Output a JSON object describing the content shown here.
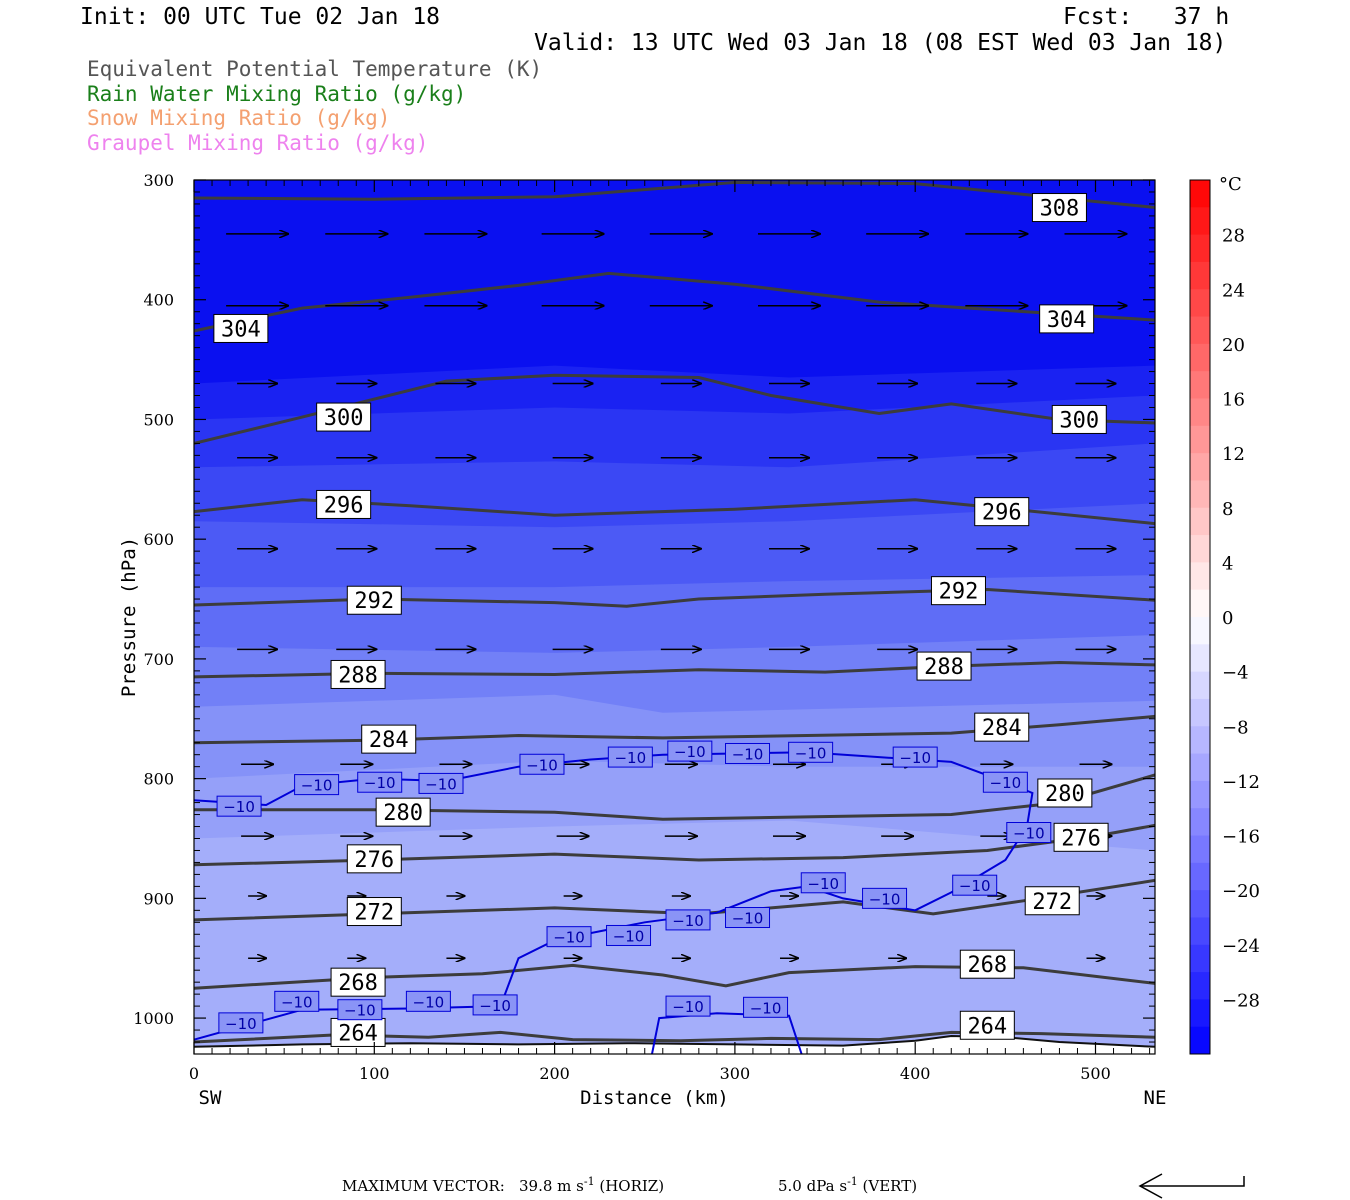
{
  "header": {
    "init": "Init: 00 UTC Tue 02 Jan 18",
    "fcst": "Fcst:   37 h",
    "valid": "Valid: 13 UTC Wed 03 Jan 18 (08 EST Wed 03 Jan 18)"
  },
  "legend": [
    {
      "label": "Equivalent Potential Temperature (K)",
      "color": "#555555"
    },
    {
      "label": "Rain Water Mixing Ratio (g/kg)",
      "color": "#1a7f1a"
    },
    {
      "label": "Snow Mixing Ratio (g/kg)",
      "color": "#f4a070"
    },
    {
      "label": "Graupel Mixing Ratio (g/kg)",
      "color": "#ee82ee"
    }
  ],
  "chart_data": {
    "type": "contour",
    "xlabel": "Distance (km)",
    "ylabel": "Pressure (hPa)",
    "x_ticks": [
      0,
      100,
      200,
      300,
      400,
      500
    ],
    "y_ticks": [
      300,
      400,
      500,
      600,
      700,
      800,
      900,
      1000
    ],
    "xlim": [
      0,
      533
    ],
    "ylim": [
      300,
      1030
    ],
    "x_end_labels": {
      "left": "SW",
      "right": "NE"
    },
    "colorbar": {
      "unit": "°C",
      "tick_labels": [
        "28",
        "24",
        "20",
        "16",
        "12",
        "8",
        "4",
        "0",
        "−4",
        "−8",
        "−12",
        "−16",
        "−20",
        "−24",
        "−28"
      ],
      "tick_values": [
        28,
        24,
        20,
        16,
        12,
        8,
        4,
        0,
        -4,
        -8,
        -12,
        -16,
        -20,
        -24,
        -28
      ],
      "range": [
        -32,
        32
      ]
    },
    "theta_e_contours": [
      {
        "label": "308",
        "points": [
          [
            0,
            315
          ],
          [
            100,
            316
          ],
          [
            200,
            314
          ],
          [
            300,
            302
          ],
          [
            400,
            303
          ],
          [
            533,
            323
          ]
        ],
        "labels": [
          [
            480,
            323
          ]
        ]
      },
      {
        "label": "304",
        "points": [
          [
            0,
            426
          ],
          [
            60,
            407
          ],
          [
            120,
            398
          ],
          [
            180,
            388
          ],
          [
            230,
            378
          ],
          [
            300,
            387
          ],
          [
            380,
            402
          ],
          [
            430,
            407
          ],
          [
            533,
            417
          ]
        ],
        "labels": [
          [
            26,
            424
          ],
          [
            484,
            416
          ]
        ]
      },
      {
        "label": "300",
        "points": [
          [
            0,
            520
          ],
          [
            60,
            498
          ],
          [
            100,
            483
          ],
          [
            140,
            468
          ],
          [
            200,
            463
          ],
          [
            280,
            465
          ],
          [
            320,
            480
          ],
          [
            380,
            495
          ],
          [
            420,
            487
          ],
          [
            480,
            500
          ],
          [
            533,
            503
          ]
        ],
        "labels": [
          [
            83,
            498
          ],
          [
            491,
            500
          ]
        ]
      },
      {
        "label": "296",
        "points": [
          [
            0,
            577
          ],
          [
            60,
            567
          ],
          [
            120,
            572
          ],
          [
            200,
            580
          ],
          [
            300,
            575
          ],
          [
            400,
            567
          ],
          [
            460,
            576
          ],
          [
            533,
            587
          ]
        ],
        "labels": [
          [
            83,
            571
          ],
          [
            448,
            577
          ]
        ]
      },
      {
        "label": "292",
        "points": [
          [
            0,
            655
          ],
          [
            100,
            650
          ],
          [
            200,
            653
          ],
          [
            240,
            656
          ],
          [
            280,
            650
          ],
          [
            350,
            646
          ],
          [
            440,
            642
          ],
          [
            533,
            651
          ]
        ],
        "labels": [
          [
            100,
            651
          ],
          [
            424,
            643
          ]
        ]
      },
      {
        "label": "288",
        "points": [
          [
            0,
            715
          ],
          [
            100,
            712
          ],
          [
            200,
            713
          ],
          [
            280,
            709
          ],
          [
            350,
            711
          ],
          [
            420,
            706
          ],
          [
            480,
            703
          ],
          [
            533,
            705
          ]
        ],
        "labels": [
          [
            91,
            713
          ],
          [
            416,
            706
          ]
        ]
      },
      {
        "label": "284",
        "points": [
          [
            0,
            770
          ],
          [
            100,
            768
          ],
          [
            180,
            764
          ],
          [
            260,
            766
          ],
          [
            340,
            764
          ],
          [
            420,
            762
          ],
          [
            480,
            755
          ],
          [
            533,
            748
          ]
        ],
        "labels": [
          [
            108,
            767
          ],
          [
            448,
            757
          ]
        ]
      },
      {
        "label": "280",
        "points": [
          [
            0,
            826
          ],
          [
            100,
            826
          ],
          [
            200,
            828
          ],
          [
            260,
            834
          ],
          [
            340,
            832
          ],
          [
            420,
            830
          ],
          [
            480,
            820
          ],
          [
            533,
            797
          ]
        ],
        "labels": [
          [
            116,
            828
          ],
          [
            483,
            812
          ]
        ]
      },
      {
        "label": "276",
        "points": [
          [
            0,
            872
          ],
          [
            100,
            868
          ],
          [
            200,
            863
          ],
          [
            280,
            868
          ],
          [
            360,
            866
          ],
          [
            440,
            860
          ],
          [
            500,
            848
          ],
          [
            533,
            839
          ]
        ],
        "labels": [
          [
            100,
            867
          ],
          [
            492,
            849
          ]
        ]
      },
      {
        "label": "272",
        "points": [
          [
            0,
            918
          ],
          [
            100,
            913
          ],
          [
            200,
            908
          ],
          [
            280,
            913
          ],
          [
            360,
            903
          ],
          [
            410,
            913
          ],
          [
            460,
            902
          ],
          [
            533,
            885
          ]
        ],
        "labels": [
          [
            100,
            911
          ],
          [
            476,
            902
          ]
        ]
      },
      {
        "label": "268",
        "points": [
          [
            0,
            975
          ],
          [
            100,
            966
          ],
          [
            160,
            963
          ],
          [
            210,
            956
          ],
          [
            260,
            964
          ],
          [
            295,
            973
          ],
          [
            330,
            962
          ],
          [
            400,
            957
          ],
          [
            460,
            958
          ],
          [
            533,
            971
          ]
        ],
        "labels": [
          [
            91,
            970
          ],
          [
            440,
            955
          ]
        ]
      },
      {
        "label": "264",
        "points": [
          [
            0,
            1020
          ],
          [
            80,
            1014
          ],
          [
            130,
            1016
          ],
          [
            170,
            1012
          ],
          [
            210,
            1018
          ],
          [
            270,
            1019
          ],
          [
            320,
            1017
          ],
          [
            380,
            1018
          ],
          [
            420,
            1012
          ],
          [
            470,
            1013
          ],
          [
            533,
            1016
          ]
        ],
        "labels": [
          [
            91,
            1012
          ],
          [
            440,
            1006
          ]
        ]
      }
    ],
    "temperature_contour": {
      "label": "−10",
      "labels": [
        [
          25,
          823
        ],
        [
          68,
          805
        ],
        [
          103,
          803
        ],
        [
          137,
          804
        ],
        [
          193,
          788
        ],
        [
          242,
          782
        ],
        [
          275,
          777
        ],
        [
          307,
          779
        ],
        [
          342,
          778
        ],
        [
          400,
          782
        ],
        [
          450,
          803
        ],
        [
          463,
          845
        ],
        [
          433,
          889
        ],
        [
          349,
          887
        ],
        [
          383,
          900
        ],
        [
          274,
          918
        ],
        [
          307,
          916
        ],
        [
          208,
          932
        ],
        [
          241,
          931
        ],
        [
          26,
          1004
        ],
        [
          57,
          986
        ],
        [
          92,
          993
        ],
        [
          130,
          986
        ],
        [
          167,
          989
        ],
        [
          274,
          990
        ],
        [
          317,
          991
        ]
      ]
    },
    "wind_rows_hpa": [
      345,
      405,
      470,
      532,
      608,
      692,
      788,
      848,
      898,
      950
    ],
    "wind_cols_km": [
      35,
      90,
      145,
      210,
      270,
      330,
      390,
      445,
      500
    ],
    "vector_reference": {
      "title": "MAXIMUM VECTOR:",
      "horiz_value": "39.8",
      "horiz_unit": "m s",
      "horiz_exp": "-1",
      "horiz_tag": "(HORIZ)",
      "vert_value": "5.0",
      "vert_unit": "dPa s",
      "vert_exp": "-1",
      "vert_tag": "(VERT)"
    }
  }
}
